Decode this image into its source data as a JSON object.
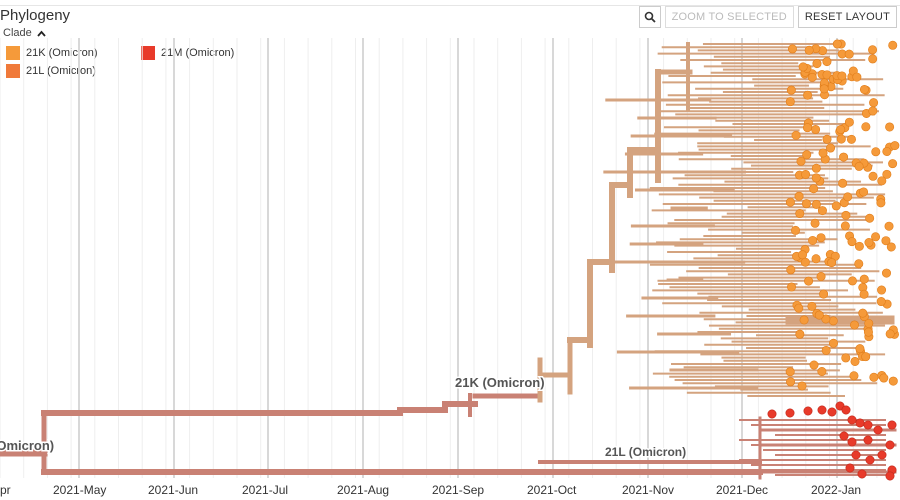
{
  "header": {
    "title": "Phylogeny"
  },
  "controls": {
    "zoom_label": "ZOOM TO SELECTED",
    "reset_label": "RESET LAYOUT"
  },
  "legend": {
    "toggle_label": "Clade",
    "items": [
      {
        "label": "21K (Omicron)",
        "color": "#f59a3a"
      },
      {
        "label": "21L (Omicron)",
        "color": "#f07a3a"
      },
      {
        "label": "21M (Omicron)",
        "color": "#e83a2a"
      }
    ]
  },
  "colors": {
    "trunk": "#c98174",
    "k_branch": "#d4a37f",
    "tip_21k": "#f59a3a",
    "tip_21m": "#e83a2a"
  },
  "tree_labels": {
    "clade_21k": "21K (Omicron)",
    "clade_21l": "21L (Omicron)",
    "clade_root": "(Omicron)"
  },
  "axis": {
    "ticks": [
      "Apr",
      "2021-May",
      "2021-Jun",
      "2021-Jul",
      "2021-Aug",
      "2021-Sep",
      "2021-Oct",
      "2021-Nov",
      "2021-Dec",
      "2022-Jan"
    ]
  }
}
